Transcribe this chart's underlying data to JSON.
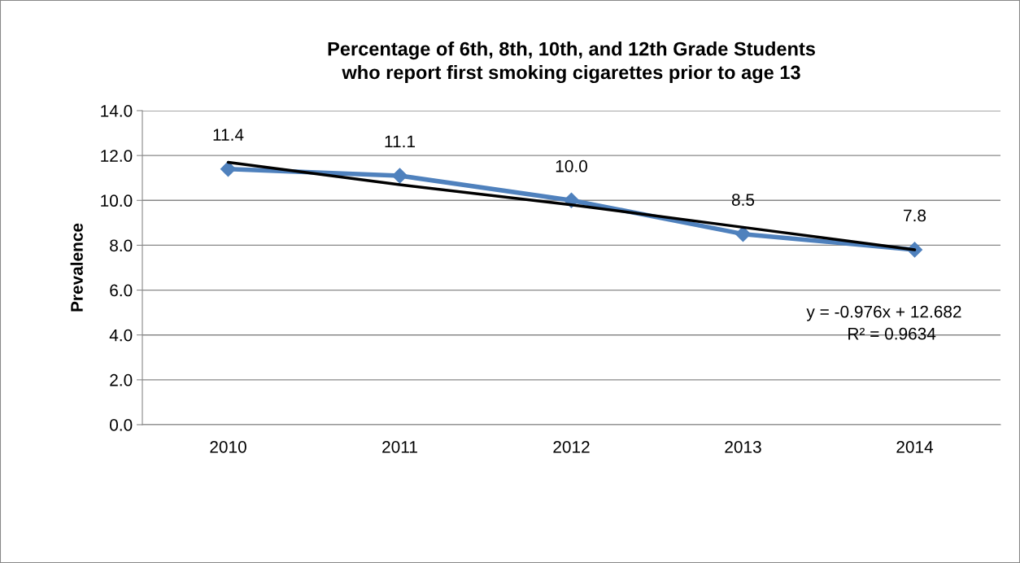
{
  "chart_data": {
    "type": "line",
    "title": "Percentage of 6th, 8th, 10th, and 12th Grade Students\nwho report first smoking cigarettes prior to age 13",
    "ylabel": "Prevalence",
    "categories": [
      "2010",
      "2011",
      "2012",
      "2013",
      "2014"
    ],
    "series": [
      {
        "color": "#4f81bd",
        "values": [
          11.4,
          11.1,
          10.0,
          8.5,
          7.8
        ],
        "value_labels": [
          "11.4",
          "11.1",
          "10.0",
          "8.5",
          "7.8"
        ],
        "marker": "diamond"
      },
      {
        "type": "line",
        "color": "#000000",
        "values": [
          11.7,
          10.7,
          9.8,
          8.8,
          7.8
        ],
        "marker": "none"
      }
    ],
    "ylim": [
      0,
      14
    ],
    "yticks": [
      {
        "value": 0,
        "label": "0.0"
      },
      {
        "value": 2,
        "label": "2.0"
      },
      {
        "value": 4,
        "label": "4.0"
      },
      {
        "value": 6,
        "label": "6.0"
      },
      {
        "value": 8,
        "label": "8.0"
      },
      {
        "value": 10,
        "label": "10.0"
      },
      {
        "value": 12,
        "label": "12.0"
      },
      {
        "value": 14,
        "label": "14.0"
      }
    ],
    "grid": "y",
    "legend": false,
    "line_style": "solid",
    "annotations": [
      "y = -0.976x + 12.682",
      "R² = 0.9634"
    ]
  }
}
